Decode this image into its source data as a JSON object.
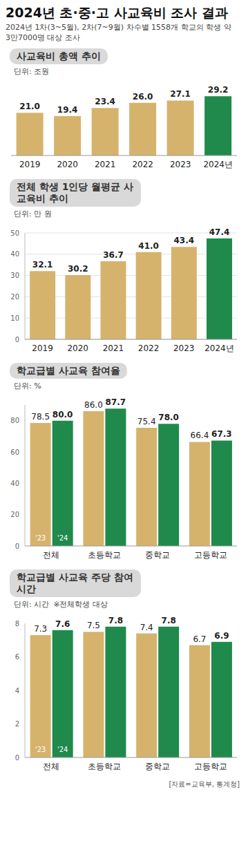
{
  "title": "2024년 초·중·고 사교육비 조사 결과",
  "subtitle": "2024년 1차(3~5월), 2차(7~9월) 차수별 1558개 학교의 학생 약 3만7000명 대상 조사",
  "source": "[자료=교육부, 통계청]",
  "chart_data": [
    {
      "type": "bar",
      "title": "사교육비 총액 추이",
      "subtitle": "단위: 조원",
      "categories": [
        "2019",
        "2020",
        "2021",
        "2022",
        "2023",
        "2024년"
      ],
      "values": [
        21.0,
        19.4,
        23.4,
        26.0,
        27.1,
        29.2
      ],
      "value_labels": [
        "21.0",
        "19.4",
        "23.4",
        "26.0",
        "27.1",
        "29.2"
      ],
      "colors": [
        "#d6b36c",
        "#d6b36c",
        "#d6b36c",
        "#d6b36c",
        "#d6b36c",
        "#1f8a4c"
      ],
      "ylim": [
        0,
        32
      ],
      "data_labels": true,
      "tick_labels": "x",
      "grid": false
    },
    {
      "type": "bar",
      "title": "전체 학생 1인당 월평균 사교육비 추이",
      "subtitle": "단위: 만 원",
      "categories": [
        "2019",
        "2020",
        "2021",
        "2022",
        "2023",
        "2024년"
      ],
      "values": [
        32.1,
        30.2,
        36.7,
        41.0,
        43.4,
        47.4
      ],
      "value_labels": [
        "32.1",
        "30.2",
        "36.7",
        "41.0",
        "43.4",
        "47.4"
      ],
      "colors": [
        "#d6b36c",
        "#d6b36c",
        "#d6b36c",
        "#d6b36c",
        "#d6b36c",
        "#1f8a4c"
      ],
      "ylim": [
        0,
        50
      ],
      "yticks": [
        0,
        10,
        20,
        30,
        40,
        50
      ],
      "data_labels": true,
      "grid": true
    },
    {
      "type": "bar",
      "title": "학교급별 사교육 참여율",
      "subtitle": "단위: %",
      "categories": [
        "전체",
        "초등학교",
        "중학교",
        "고등학교"
      ],
      "series": [
        {
          "name": "'23",
          "color": "#d6b36c",
          "values": [
            78.5,
            86.0,
            75.4,
            66.4
          ],
          "value_labels": [
            "78.5",
            "86.0",
            "75.4",
            "66.4"
          ]
        },
        {
          "name": "'24",
          "color": "#1f8a4c",
          "values": [
            80.0,
            87.7,
            78.0,
            67.3
          ],
          "value_labels": [
            "80.0",
            "87.7",
            "78.0",
            "67.3"
          ]
        }
      ],
      "ylim": [
        0,
        90
      ],
      "yticks": [
        0,
        20,
        40,
        60,
        80
      ],
      "data_labels": true,
      "grid": false
    },
    {
      "type": "bar",
      "title": "학교급별 사교육 주당 참여시간",
      "subtitle": "단위: 시간",
      "annotation": "※전체학생 대상",
      "categories": [
        "전체",
        "초등학교",
        "중학교",
        "고등학교"
      ],
      "series": [
        {
          "name": "'23",
          "color": "#d6b36c",
          "values": [
            7.3,
            7.5,
            7.4,
            6.7
          ]
        },
        {
          "name": "'24",
          "color": "#1f8a4c",
          "values": [
            7.6,
            7.8,
            7.8,
            6.9
          ]
        }
      ],
      "ylim": [
        0,
        8
      ],
      "yticks": [
        0,
        2,
        4,
        6,
        8
      ],
      "data_labels": true,
      "grid": false
    }
  ]
}
